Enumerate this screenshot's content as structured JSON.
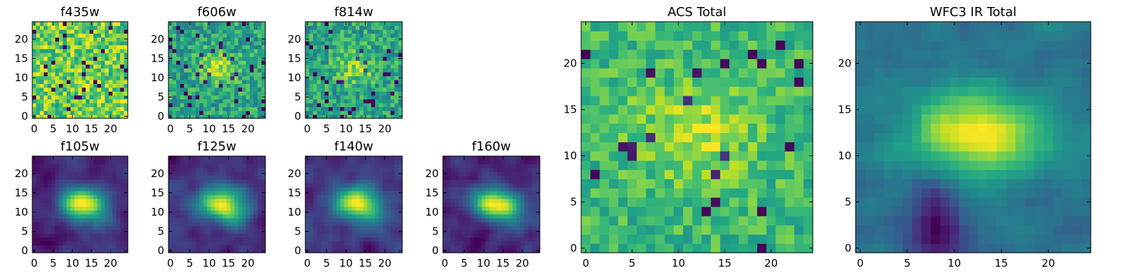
{
  "chart_data": {
    "type": "heatmap",
    "colormap": "viridis",
    "grid_size": 25,
    "panels": [
      {
        "title": "f435w",
        "style": "noise",
        "xticks": [
          "0",
          "5",
          "10",
          "15",
          "20"
        ],
        "yticks": [
          "0",
          "5",
          "10",
          "15",
          "20"
        ],
        "xlim": [
          0,
          24
        ],
        "ylim": [
          0,
          24
        ]
      },
      {
        "title": "f606w",
        "style": "noise-blob",
        "xticks": [
          "0",
          "5",
          "10",
          "15",
          "20"
        ],
        "yticks": [
          "0",
          "5",
          "10",
          "15",
          "20"
        ],
        "xlim": [
          0,
          24
        ],
        "ylim": [
          0,
          24
        ]
      },
      {
        "title": "f814w",
        "style": "noise-blob",
        "xticks": [
          "0",
          "5",
          "10",
          "15",
          "20"
        ],
        "yticks": [
          "0",
          "5",
          "10",
          "15",
          "20"
        ],
        "xlim": [
          0,
          24
        ],
        "ylim": [
          0,
          24
        ]
      },
      {
        "title": "f105w",
        "style": "smooth",
        "xticks": [
          "0",
          "5",
          "10",
          "15",
          "20"
        ],
        "yticks": [
          "0",
          "5",
          "10",
          "15",
          "20"
        ],
        "xlim": [
          0,
          24
        ],
        "ylim": [
          0,
          24
        ]
      },
      {
        "title": "f125w",
        "style": "smooth",
        "xticks": [
          "0",
          "5",
          "10",
          "15",
          "20"
        ],
        "yticks": [
          "0",
          "5",
          "10",
          "15",
          "20"
        ],
        "xlim": [
          0,
          24
        ],
        "ylim": [
          0,
          24
        ]
      },
      {
        "title": "f140w",
        "style": "smooth",
        "xticks": [
          "0",
          "5",
          "10",
          "15",
          "20"
        ],
        "yticks": [
          "0",
          "5",
          "10",
          "15",
          "20"
        ],
        "xlim": [
          0,
          24
        ],
        "ylim": [
          0,
          24
        ]
      },
      {
        "title": "f160w",
        "style": "smooth",
        "xticks": [
          "0",
          "5",
          "10",
          "15",
          "20"
        ],
        "yticks": [
          "0",
          "5",
          "10",
          "15",
          "20"
        ],
        "xlim": [
          0,
          24
        ],
        "ylim": [
          0,
          24
        ]
      },
      {
        "title": "ACS Total",
        "style": "acs",
        "xticks": [
          "0",
          "5",
          "10",
          "15",
          "20"
        ],
        "yticks": [
          "0",
          "5",
          "10",
          "15",
          "20"
        ],
        "xlim": [
          0,
          24
        ],
        "ylim": [
          0,
          24
        ]
      },
      {
        "title": "WFC3 IR Total",
        "style": "ir",
        "xticks": [
          "0",
          "5",
          "10",
          "15",
          "20"
        ],
        "yticks": [
          "0",
          "5",
          "10",
          "15",
          "20"
        ],
        "xlim": [
          0,
          24
        ],
        "ylim": [
          0,
          24
        ]
      }
    ]
  }
}
